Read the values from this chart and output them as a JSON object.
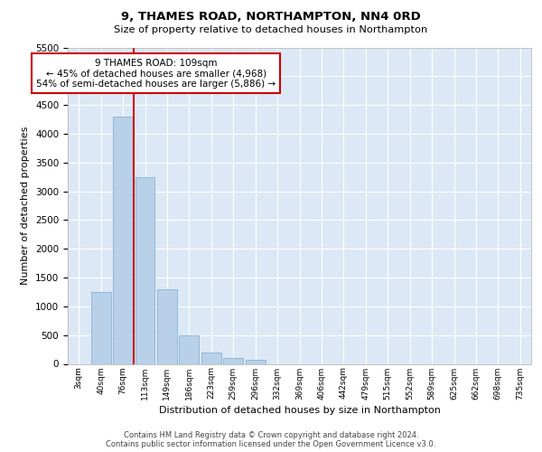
{
  "title1": "9, THAMES ROAD, NORTHAMPTON, NN4 0RD",
  "title2": "Size of property relative to detached houses in Northampton",
  "xlabel": "Distribution of detached houses by size in Northampton",
  "ylabel": "Number of detached properties",
  "annotation_title": "9 THAMES ROAD: 109sqm",
  "annotation_line1": "← 45% of detached houses are smaller (4,968)",
  "annotation_line2": "54% of semi-detached houses are larger (5,886) →",
  "bar_color": "#b8d0e8",
  "bar_edge_color": "#7aaace",
  "vline_color": "#cc0000",
  "vline_x": 2.5,
  "categories": [
    "3sqm",
    "40sqm",
    "76sqm",
    "113sqm",
    "149sqm",
    "186sqm",
    "223sqm",
    "259sqm",
    "296sqm",
    "332sqm",
    "369sqm",
    "406sqm",
    "442sqm",
    "479sqm",
    "515sqm",
    "552sqm",
    "589sqm",
    "625sqm",
    "662sqm",
    "698sqm",
    "735sqm"
  ],
  "values": [
    0,
    1250,
    4300,
    3250,
    1300,
    500,
    200,
    110,
    70,
    0,
    0,
    0,
    0,
    0,
    0,
    0,
    0,
    0,
    0,
    0,
    0
  ],
  "ylim": [
    0,
    5500
  ],
  "yticks": [
    0,
    500,
    1000,
    1500,
    2000,
    2500,
    3000,
    3500,
    4000,
    4500,
    5000,
    5500
  ],
  "footer1": "Contains HM Land Registry data © Crown copyright and database right 2024.",
  "footer2": "Contains public sector information licensed under the Open Government Licence v3.0.",
  "grid_color": "#ffffff",
  "bg_color": "#dce8f5"
}
